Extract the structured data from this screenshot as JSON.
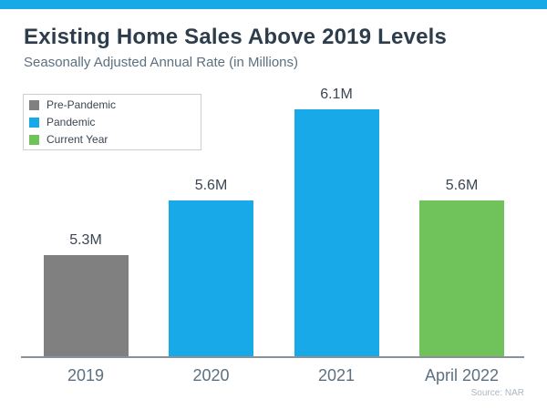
{
  "page": {
    "accent_color": "#17a9e8"
  },
  "header": {
    "title": "Existing Home Sales Above 2019 Levels",
    "subtitle": "Seasonally Adjusted Annual Rate (in Millions)"
  },
  "chart_data": {
    "type": "bar",
    "title": "Existing Home Sales Above 2019 Levels",
    "subtitle": "Seasonally Adjusted Annual Rate (in Millions)",
    "categories": [
      "2019",
      "2020",
      "2021",
      "April 2022"
    ],
    "values": [
      5.3,
      5.6,
      6.1,
      5.6
    ],
    "value_labels": [
      "5.3M",
      "5.6M",
      "6.1M",
      "5.6M"
    ],
    "point_groups": [
      "Pre-Pandemic",
      "Pandemic",
      "Pandemic",
      "Current Year"
    ],
    "legend": [
      {
        "label": "Pre-Pandemic",
        "color": "#808080"
      },
      {
        "label": "Pandemic",
        "color": "#17a9e8"
      },
      {
        "label": "Current Year",
        "color": "#70c35a"
      }
    ],
    "legend_position": "top-left",
    "grid": false,
    "axis_baseline_truncated": true,
    "ylim": [
      4.745,
      6.35
    ],
    "xlabel": "",
    "ylabel": "",
    "source": "Source: NAR"
  }
}
